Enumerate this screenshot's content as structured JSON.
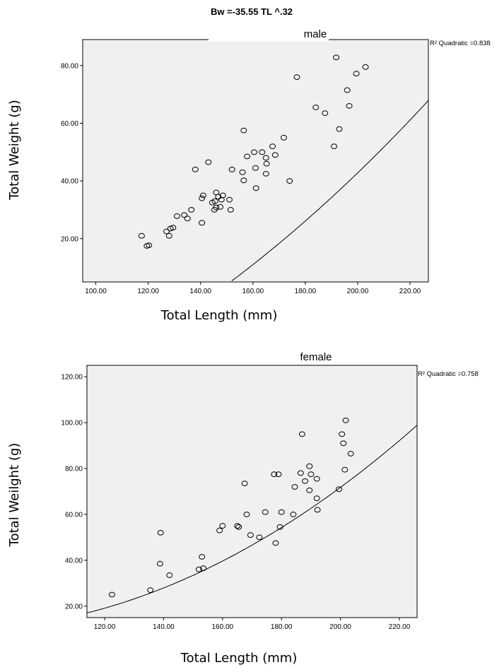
{
  "figure_title": "Bw =-35.55  TL ^.32",
  "chart_data": [
    {
      "type": "scatter",
      "title": "male",
      "xlabel": "Total Length (mm)",
      "ylabel": "Total Weight (g)",
      "xlim": [
        95,
        227
      ],
      "ylim": [
        5,
        89
      ],
      "xticks": [
        "100.00",
        "120.00",
        "140.00",
        "160.00",
        "180.00",
        "200.00",
        "220.00"
      ],
      "xtick_values": [
        100,
        120,
        140,
        160,
        180,
        200,
        220
      ],
      "yticks": [
        "20.00",
        "40.00",
        "60.00",
        "80.00"
      ],
      "ytick_values": [
        20,
        40,
        60,
        80
      ],
      "fit_label": "R² Quadratic =0.838",
      "fit": {
        "type": "quadratic",
        "a": 0.002,
        "b": 0.075,
        "c": -52.2
      },
      "points": [
        [
          117.5,
          21.0
        ],
        [
          119.5,
          17.5
        ],
        [
          120.3,
          17.7
        ],
        [
          127.0,
          22.5
        ],
        [
          128.0,
          21.0
        ],
        [
          128.5,
          23.5
        ],
        [
          129.5,
          23.8
        ],
        [
          131.0,
          27.8
        ],
        [
          133.8,
          28.2
        ],
        [
          135.0,
          27.0
        ],
        [
          136.5,
          30.0
        ],
        [
          138.0,
          44.0
        ],
        [
          140.5,
          25.5
        ],
        [
          140.5,
          34.0
        ],
        [
          141.0,
          35.0
        ],
        [
          143.0,
          46.5
        ],
        [
          144.5,
          32.5
        ],
        [
          145.5,
          33.0
        ],
        [
          145.3,
          30.0
        ],
        [
          146.0,
          30.8
        ],
        [
          146.0,
          36.0
        ],
        [
          146.8,
          34.5
        ],
        [
          147.5,
          31.0
        ],
        [
          148.0,
          33.5
        ],
        [
          148.5,
          35.0
        ],
        [
          151.5,
          30.0
        ],
        [
          151.0,
          33.5
        ],
        [
          152.0,
          44.0
        ],
        [
          156.0,
          43.0
        ],
        [
          156.5,
          40.2
        ],
        [
          156.5,
          57.5
        ],
        [
          157.8,
          48.5
        ],
        [
          160.5,
          50.0
        ],
        [
          161.0,
          44.5
        ],
        [
          161.2,
          37.5
        ],
        [
          163.5,
          50.0
        ],
        [
          165.0,
          48.0
        ],
        [
          165.0,
          42.5
        ],
        [
          165.2,
          46.0
        ],
        [
          167.5,
          52.0
        ],
        [
          168.5,
          49.0
        ],
        [
          171.8,
          55.0
        ],
        [
          174.0,
          40.0
        ],
        [
          176.8,
          76.0
        ],
        [
          184.0,
          65.5
        ],
        [
          187.5,
          63.5
        ],
        [
          191.0,
          52.0
        ],
        [
          191.8,
          82.8
        ],
        [
          193.0,
          58.0
        ],
        [
          196.0,
          71.5
        ],
        [
          196.8,
          66.0
        ],
        [
          199.5,
          77.2
        ],
        [
          203.0,
          79.5
        ]
      ]
    },
    {
      "type": "scatter",
      "title": "female",
      "xlabel": "Total Length (mm)",
      "ylabel": "Total Weilght (g)",
      "xlim": [
        114,
        226
      ],
      "ylim": [
        15,
        125
      ],
      "xticks": [
        "120.00",
        "140.00",
        "160.00",
        "180.00",
        "200.00",
        "220.00"
      ],
      "xtick_values": [
        120,
        140,
        160,
        180,
        200,
        220
      ],
      "yticks": [
        "20.00",
        "40.00",
        "60.00",
        "80.00",
        "100.00",
        "120.00"
      ],
      "ytick_values": [
        20,
        40,
        60,
        80,
        100,
        120
      ],
      "fit_label": "R² Quadratic =0.758",
      "fit": {
        "type": "quadratic",
        "a": 0.00362,
        "b": -0.5,
        "c": 26.97
      },
      "points": [
        [
          122.5,
          25.0
        ],
        [
          135.5,
          27.0
        ],
        [
          138.8,
          38.5
        ],
        [
          139.0,
          52.0
        ],
        [
          142.0,
          33.5
        ],
        [
          152.0,
          36.0
        ],
        [
          153.0,
          41.5
        ],
        [
          153.5,
          36.5
        ],
        [
          159.0,
          53.0
        ],
        [
          160.0,
          55.0
        ],
        [
          165.0,
          55.0
        ],
        [
          165.5,
          54.5
        ],
        [
          167.5,
          73.5
        ],
        [
          168.2,
          60.0
        ],
        [
          169.5,
          51.0
        ],
        [
          172.5,
          50.0
        ],
        [
          174.5,
          61.0
        ],
        [
          177.5,
          77.5
        ],
        [
          178.0,
          47.5
        ],
        [
          179.0,
          77.5
        ],
        [
          179.5,
          54.5
        ],
        [
          180.0,
          61.0
        ],
        [
          184.0,
          60.0
        ],
        [
          184.5,
          72.0
        ],
        [
          186.5,
          78.0
        ],
        [
          187.0,
          95.0
        ],
        [
          188.0,
          74.5
        ],
        [
          189.5,
          81.0
        ],
        [
          189.5,
          70.5
        ],
        [
          190.0,
          77.5
        ],
        [
          192.0,
          75.5
        ],
        [
          192.0,
          67.0
        ],
        [
          192.2,
          62.0
        ],
        [
          199.5,
          71.0
        ],
        [
          200.5,
          95.0
        ],
        [
          201.0,
          91.0
        ],
        [
          201.5,
          79.5
        ],
        [
          201.8,
          101.0
        ],
        [
          203.5,
          86.5
        ]
      ]
    }
  ]
}
